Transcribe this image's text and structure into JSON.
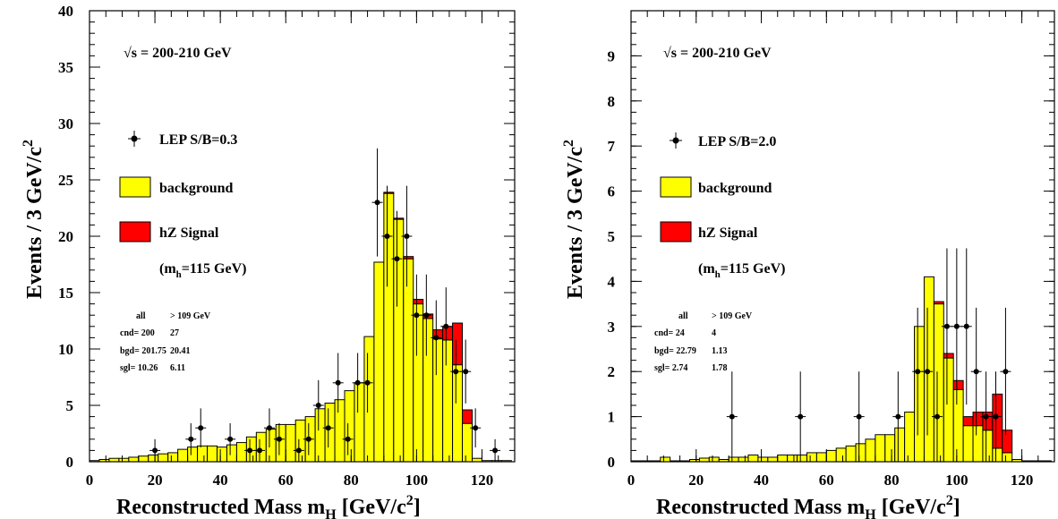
{
  "chart_data": [
    {
      "type": "bar",
      "energy_label": "√s = 200-210 GeV",
      "xlabel_main": "Reconstructed Mass m",
      "xlabel_sub": "H",
      "xlabel_unit": " [GeV/c",
      "xlabel_sup": "2",
      "xlabel_end": "]",
      "ylabel_main": "Events / 3 GeV/c",
      "ylabel_sup": "2",
      "xlim": [
        0,
        130
      ],
      "ylim": [
        0,
        40
      ],
      "x_ticks": [
        "0",
        "20",
        "40",
        "60",
        "80",
        "100",
        "120"
      ],
      "y_ticks": [
        "0",
        "5",
        "10",
        "15",
        "20",
        "25",
        "30",
        "35",
        "40"
      ],
      "legend": {
        "data": "LEP S/B=0.3",
        "background": "background",
        "signal": "hZ Signal",
        "mass_main": "(m",
        "mass_sub": "h",
        "mass_end": "=115 GeV)"
      },
      "stats": {
        "header_all": "all",
        "header_cut": "> 109 GeV",
        "rows": [
          {
            "label": "cnd= 200",
            "cut": "27"
          },
          {
            "label": "bgd= 201.75",
            "cut": "20.41"
          },
          {
            "label": "sgl=  10.26",
            "cut": "6.11"
          }
        ]
      },
      "bin_width": 3,
      "bin_start": 0,
      "background": [
        0.1,
        0.2,
        0.3,
        0.3,
        0.4,
        0.5,
        0.6,
        0.7,
        0.8,
        1.1,
        1.3,
        1.4,
        1.4,
        1.3,
        1.5,
        1.7,
        2.2,
        2.6,
        2.9,
        3.3,
        3.3,
        3.7,
        4.0,
        4.7,
        5.2,
        5.5,
        6.3,
        7.0,
        11.1,
        17.7,
        23.8,
        21.5,
        18.0,
        14.0,
        12.7,
        10.9,
        10.8,
        8.6,
        3.4,
        0.3,
        0.1,
        0.1,
        0.1
      ],
      "signal": [
        0,
        0,
        0,
        0,
        0,
        0,
        0,
        0,
        0,
        0,
        0,
        0,
        0,
        0,
        0,
        0,
        0,
        0,
        0,
        0,
        0,
        0,
        0,
        0,
        0,
        0,
        0,
        0,
        0,
        0,
        0.1,
        0.1,
        0.2,
        0.4,
        0.4,
        0.8,
        1.2,
        3.7,
        1.2,
        0,
        0,
        0,
        0
      ],
      "data_points": [
        {
          "x": 20,
          "y": 1
        },
        {
          "x": 31,
          "y": 2
        },
        {
          "x": 34,
          "y": 3
        },
        {
          "x": 43,
          "y": 2
        },
        {
          "x": 49,
          "y": 1
        },
        {
          "x": 52,
          "y": 1
        },
        {
          "x": 55,
          "y": 3
        },
        {
          "x": 58,
          "y": 2
        },
        {
          "x": 64,
          "y": 1
        },
        {
          "x": 67,
          "y": 2
        },
        {
          "x": 70,
          "y": 5
        },
        {
          "x": 73,
          "y": 3
        },
        {
          "x": 76,
          "y": 7
        },
        {
          "x": 79,
          "y": 2
        },
        {
          "x": 82,
          "y": 7
        },
        {
          "x": 85,
          "y": 7
        },
        {
          "x": 88,
          "y": 23
        },
        {
          "x": 91,
          "y": 20
        },
        {
          "x": 94,
          "y": 18
        },
        {
          "x": 97,
          "y": 20
        },
        {
          "x": 100,
          "y": 13
        },
        {
          "x": 103,
          "y": 13
        },
        {
          "x": 106,
          "y": 11
        },
        {
          "x": 109,
          "y": 12
        },
        {
          "x": 112,
          "y": 8
        },
        {
          "x": 115,
          "y": 8
        },
        {
          "x": 118,
          "y": 3
        },
        {
          "x": 124,
          "y": 1
        }
      ]
    },
    {
      "type": "bar",
      "energy_label": "√s = 200-210 GeV",
      "xlabel_main": "Reconstructed Mass m",
      "xlabel_sub": "H",
      "xlabel_unit": " [GeV/c",
      "xlabel_sup": "2",
      "xlabel_end": "]",
      "ylabel_main": "Events / 3 GeV/c",
      "ylabel_sup": "2",
      "xlim": [
        0,
        130
      ],
      "ylim": [
        0,
        10
      ],
      "x_ticks": [
        "0",
        "20",
        "40",
        "60",
        "80",
        "100",
        "120"
      ],
      "y_ticks": [
        "0",
        "1",
        "2",
        "3",
        "4",
        "5",
        "6",
        "7",
        "8",
        "9"
      ],
      "legend": {
        "data": "LEP S/B=2.0",
        "background": "background",
        "signal": "hZ Signal",
        "mass_main": "(m",
        "mass_sub": "h",
        "mass_end": "=115 GeV)"
      },
      "stats": {
        "header_all": "all",
        "header_cut": "> 109 GeV",
        "rows": [
          {
            "label": "cnd= 24",
            "cut": "4"
          },
          {
            "label": "bgd= 22.79",
            "cut": "1.13"
          },
          {
            "label": "sgl=  2.74",
            "cut": "1.78"
          }
        ]
      },
      "bin_width": 3,
      "bin_start": 0,
      "background": [
        0.02,
        0.02,
        0.02,
        0.1,
        0.02,
        0.02,
        0.05,
        0.08,
        0.1,
        0.05,
        0.1,
        0.1,
        0.15,
        0.1,
        0.1,
        0.15,
        0.15,
        0.15,
        0.2,
        0.2,
        0.25,
        0.3,
        0.35,
        0.4,
        0.5,
        0.6,
        0.6,
        0.75,
        1.1,
        3.0,
        4.1,
        3.5,
        2.3,
        1.6,
        0.8,
        0.8,
        0.7,
        0.3,
        0.2,
        0.05,
        0.02,
        0.02,
        0.02
      ],
      "signal": [
        0,
        0,
        0,
        0,
        0,
        0,
        0,
        0,
        0,
        0,
        0,
        0,
        0,
        0,
        0,
        0,
        0,
        0,
        0,
        0,
        0,
        0,
        0,
        0,
        0,
        0,
        0,
        0,
        0,
        0,
        0,
        0.05,
        0.1,
        0.2,
        0.2,
        0.3,
        0.4,
        1.2,
        0.5,
        0,
        0,
        0,
        0
      ],
      "data_points": [
        {
          "x": 31,
          "y": 1
        },
        {
          "x": 52,
          "y": 1
        },
        {
          "x": 70,
          "y": 1
        },
        {
          "x": 82,
          "y": 1
        },
        {
          "x": 88,
          "y": 2
        },
        {
          "x": 91,
          "y": 2
        },
        {
          "x": 94,
          "y": 1
        },
        {
          "x": 97,
          "y": 3
        },
        {
          "x": 100,
          "y": 3
        },
        {
          "x": 103,
          "y": 3
        },
        {
          "x": 106,
          "y": 2
        },
        {
          "x": 109,
          "y": 1
        },
        {
          "x": 112,
          "y": 1
        },
        {
          "x": 115,
          "y": 2
        }
      ]
    }
  ]
}
